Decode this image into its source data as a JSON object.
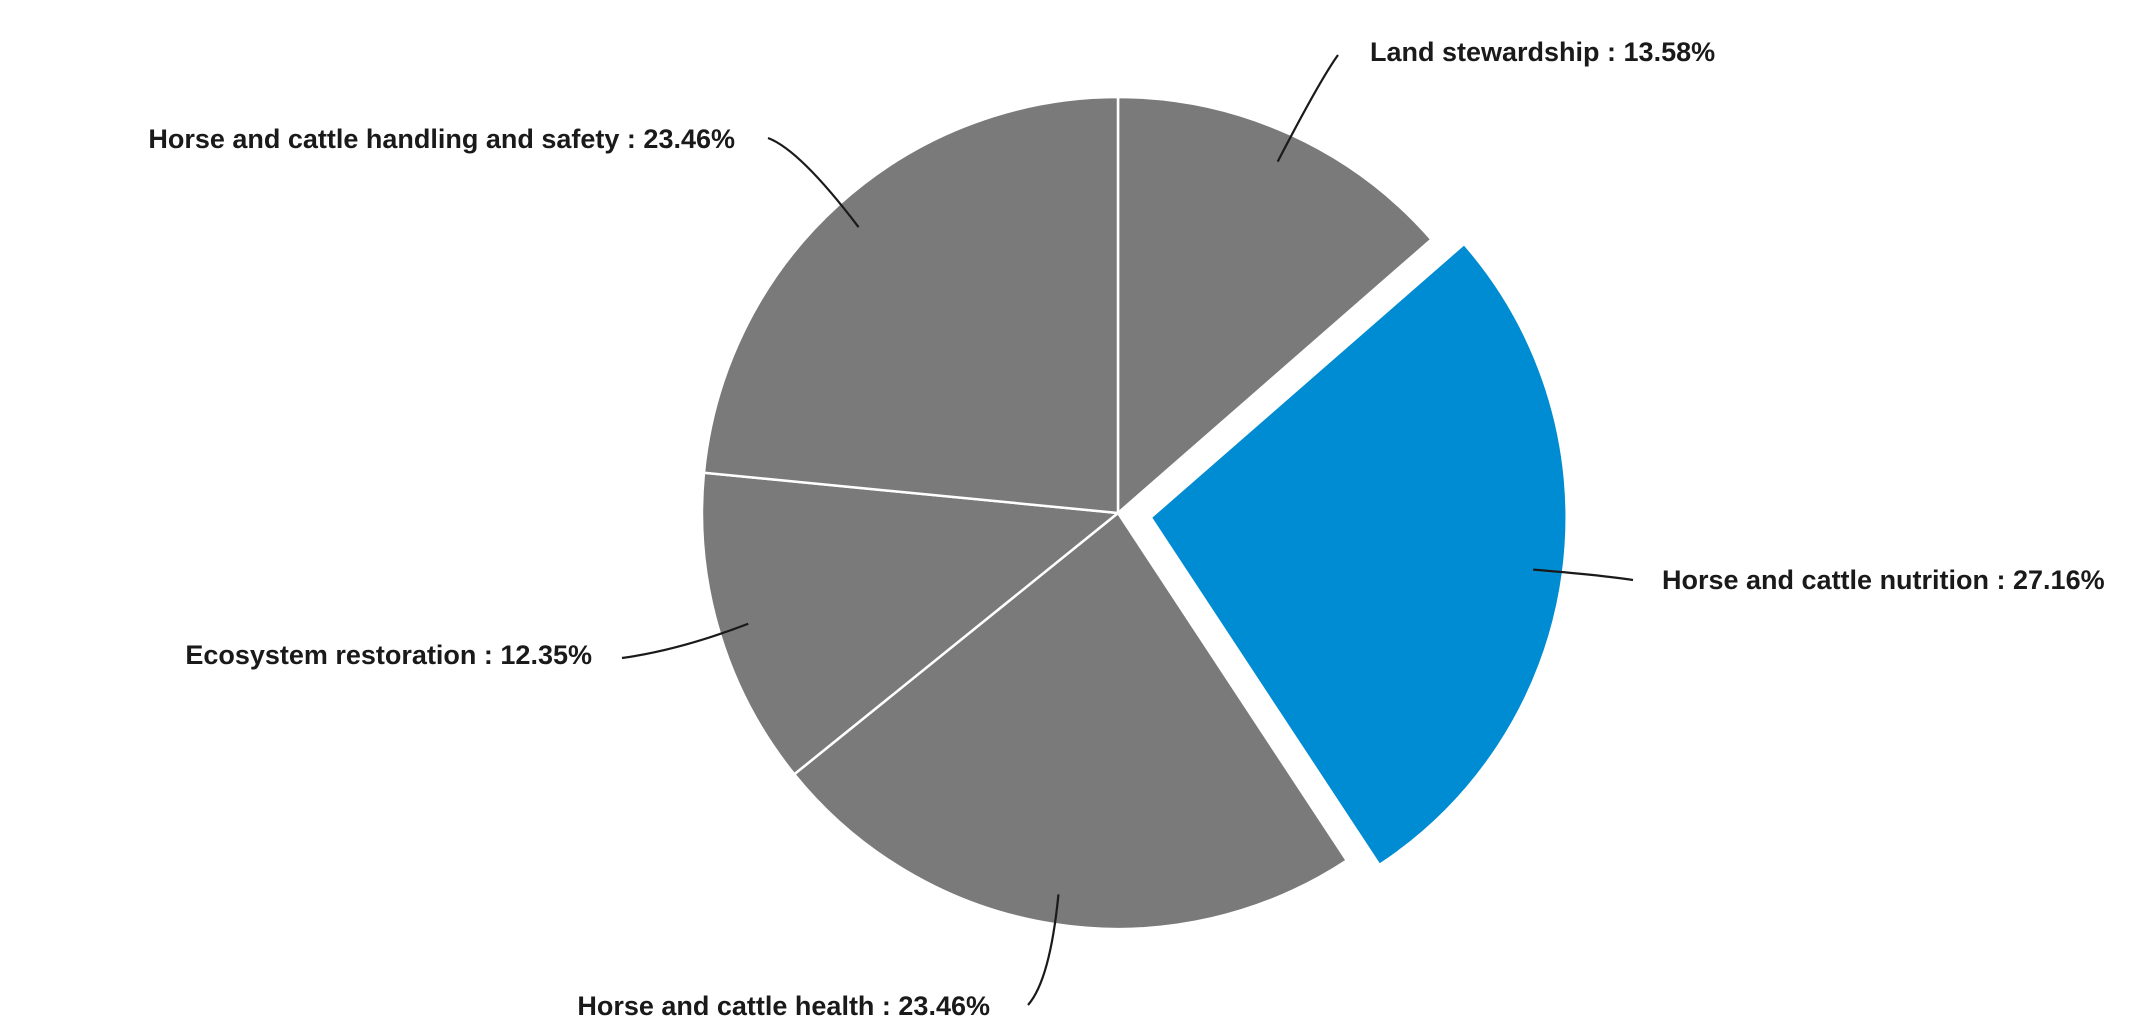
{
  "chart_data": {
    "type": "pie",
    "title": "",
    "slices": [
      {
        "label": "Land stewardship",
        "value": 13.58,
        "display": "13.58%",
        "color": "#7a7a7a",
        "exploded": false
      },
      {
        "label": "Horse and cattle nutrition",
        "value": 27.16,
        "display": "27.16%",
        "color": "#008cd2",
        "exploded": true
      },
      {
        "label": "Horse and cattle health",
        "value": 23.46,
        "display": "23.46%",
        "color": "#7a7a7a",
        "exploded": false
      },
      {
        "label": "Ecosystem restoration",
        "value": 12.35,
        "display": "12.35%",
        "color": "#7a7a7a",
        "exploded": false
      },
      {
        "label": "Horse and cattle handling and safety",
        "value": 23.46,
        "display": "23.46%",
        "color": "#7a7a7a",
        "exploded": false
      }
    ],
    "start": "12 o'clock",
    "direction": "clockwise",
    "label_separator": " : ",
    "legend": "none"
  }
}
